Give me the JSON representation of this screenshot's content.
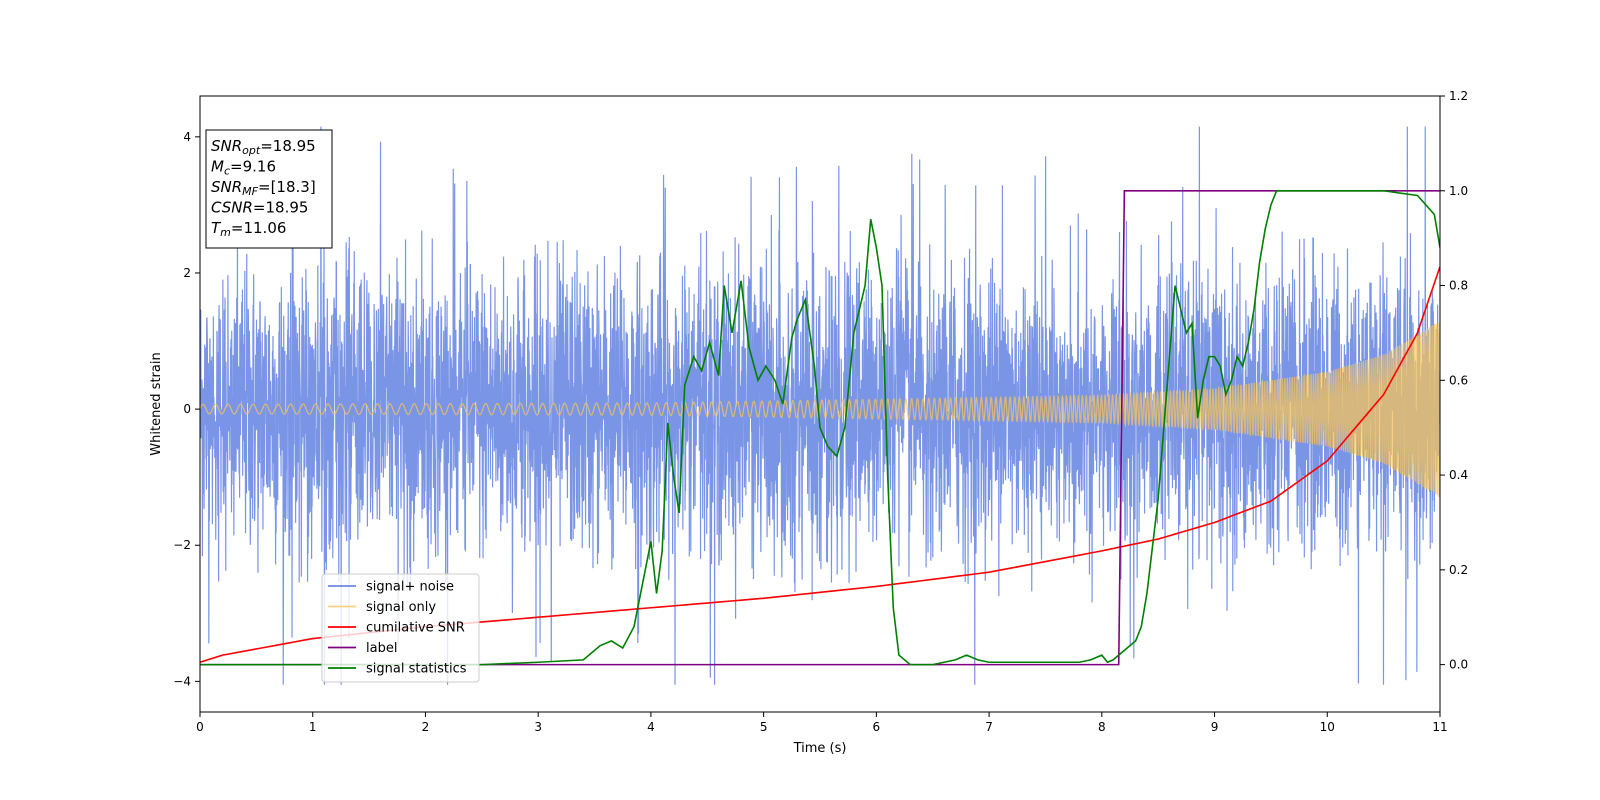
{
  "chart_data": {
    "type": "line",
    "xlabel": "Time (s)",
    "ylabel": "Whitened strain",
    "xlim": [
      0,
      11
    ],
    "ylim": [
      -4.45,
      4.6
    ],
    "y2lim": [
      -0.1,
      1.2
    ],
    "xticks": [
      "0",
      "1",
      "2",
      "3",
      "4",
      "5",
      "6",
      "7",
      "8",
      "9",
      "10",
      "11"
    ],
    "yticks": [
      {
        "v": -4,
        "label": "−4"
      },
      {
        "v": -2,
        "label": "−2"
      },
      {
        "v": 0,
        "label": "0"
      },
      {
        "v": 2,
        "label": "2"
      },
      {
        "v": 4,
        "label": "4"
      }
    ],
    "y2ticks": [
      "0.0",
      "0.2",
      "0.4",
      "0.6",
      "0.8",
      "1.0",
      "1.2"
    ],
    "grid": false,
    "legend_position": "lower-left",
    "colors": {
      "noise": "#6b8ae3",
      "signal": "#f5c35a",
      "cumulative": "#ff0000",
      "label": "#800080",
      "statistics": "#008000"
    },
    "annotation": [
      {
        "main": "SNR",
        "sub": "opt",
        "value": "=18.95"
      },
      {
        "main": "M",
        "sub": "c",
        "value": "=9.16"
      },
      {
        "main": "SNR",
        "sub": "MF",
        "value": "=[18.3]"
      },
      {
        "main": "CSNR",
        "sub": "",
        "value": "=18.95"
      },
      {
        "main": "T",
        "sub": "m",
        "value": "=11.06"
      }
    ],
    "series": [
      {
        "name": "signal+ noise",
        "axis": "left",
        "kind": "noise",
        "amplitude_sigma": 1.0,
        "range": [
          -4.05,
          4.15
        ]
      },
      {
        "name": "signal only",
        "axis": "left",
        "kind": "chirp",
        "envelope": [
          [
            0,
            0.07
          ],
          [
            4,
            0.09
          ],
          [
            8,
            0.2
          ],
          [
            9,
            0.3
          ],
          [
            10,
            0.55
          ],
          [
            10.5,
            0.8
          ],
          [
            11,
            1.3
          ]
        ]
      },
      {
        "name": "cumilative SNR",
        "axis": "right",
        "x": [
          0,
          0.2,
          1,
          2,
          3,
          4,
          5,
          6,
          7,
          8,
          8.5,
          9,
          9.5,
          10,
          10.5,
          10.8,
          11
        ],
        "values": [
          0.005,
          0.02,
          0.055,
          0.08,
          0.1,
          0.12,
          0.14,
          0.165,
          0.195,
          0.24,
          0.265,
          0.3,
          0.345,
          0.43,
          0.57,
          0.7,
          0.84
        ]
      },
      {
        "name": "label",
        "axis": "right",
        "x": [
          0,
          8.15,
          8.2,
          11
        ],
        "values": [
          0.0,
          0.0,
          1.0,
          1.0
        ]
      },
      {
        "name": "signal statistics",
        "axis": "right",
        "x": [
          0,
          1,
          2,
          2.5,
          3,
          3.4,
          3.55,
          3.65,
          3.75,
          3.85,
          3.95,
          4.0,
          4.05,
          4.1,
          4.15,
          4.2,
          4.25,
          4.3,
          4.38,
          4.45,
          4.52,
          4.6,
          4.65,
          4.72,
          4.8,
          4.87,
          4.95,
          5.02,
          5.1,
          5.17,
          5.25,
          5.3,
          5.37,
          5.45,
          5.5,
          5.57,
          5.65,
          5.72,
          5.8,
          5.85,
          5.9,
          5.95,
          6.0,
          6.05,
          6.1,
          6.15,
          6.2,
          6.3,
          6.4,
          6.5,
          6.6,
          6.7,
          6.8,
          6.9,
          7.0,
          7.5,
          7.8,
          7.9,
          8.0,
          8.05,
          8.1,
          8.2,
          8.3,
          8.35,
          8.4,
          8.45,
          8.5,
          8.55,
          8.6,
          8.65,
          8.7,
          8.75,
          8.8,
          8.85,
          8.9,
          8.95,
          9.0,
          9.05,
          9.1,
          9.15,
          9.2,
          9.25,
          9.3,
          9.35,
          9.4,
          9.45,
          9.5,
          9.55,
          9.6,
          9.7,
          9.8,
          10.0,
          10.2,
          10.5,
          10.8,
          10.95,
          11.0
        ],
        "values": [
          0.0,
          0.0,
          0.0,
          0.0,
          0.005,
          0.01,
          0.04,
          0.05,
          0.035,
          0.08,
          0.2,
          0.26,
          0.15,
          0.24,
          0.51,
          0.4,
          0.32,
          0.59,
          0.65,
          0.62,
          0.68,
          0.61,
          0.8,
          0.7,
          0.81,
          0.67,
          0.6,
          0.63,
          0.6,
          0.55,
          0.69,
          0.73,
          0.77,
          0.63,
          0.5,
          0.46,
          0.44,
          0.5,
          0.7,
          0.75,
          0.8,
          0.94,
          0.88,
          0.8,
          0.4,
          0.12,
          0.02,
          0.0,
          0.0,
          0.0,
          0.005,
          0.01,
          0.02,
          0.01,
          0.005,
          0.005,
          0.005,
          0.01,
          0.02,
          0.005,
          0.01,
          0.03,
          0.05,
          0.08,
          0.15,
          0.25,
          0.35,
          0.5,
          0.65,
          0.8,
          0.75,
          0.7,
          0.72,
          0.52,
          0.6,
          0.65,
          0.65,
          0.63,
          0.57,
          0.6,
          0.65,
          0.63,
          0.68,
          0.75,
          0.85,
          0.92,
          0.97,
          1.0,
          1.0,
          1.0,
          1.0,
          1.0,
          1.0,
          1.0,
          0.99,
          0.95,
          0.88
        ]
      }
    ]
  }
}
